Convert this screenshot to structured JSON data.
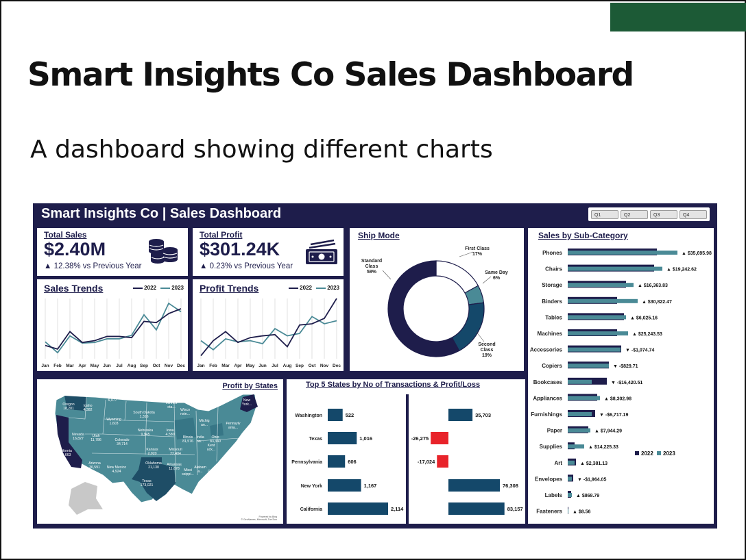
{
  "slide": {
    "title": "Smart Insights Co Sales Dashboard",
    "subtitle": "A dashboard showing different charts",
    "accent_color": "#1c5a36"
  },
  "dashboard": {
    "header": "Smart Insights Co | Sales Dashboard",
    "filters": [
      "Q1",
      "Q2",
      "Q3",
      "Q4"
    ],
    "background": "#1e1d4b",
    "colors": {
      "y2022": "#1e1d4b",
      "y2023": "#4a8a96",
      "bar": "#14486a",
      "loss": "#e8232a",
      "first_class": "#ffffff",
      "same_day": "#4a8a96",
      "second_class": "#14486a",
      "standard_class": "#1e1d4b"
    }
  },
  "kpis": {
    "sales": {
      "title": "Total Sales",
      "value": "$2.40M",
      "change": "▲ 12.38% vs Previous Year",
      "icon": "coins-icon"
    },
    "profit": {
      "title": "Total Profit",
      "value": "$301.24K",
      "change": "▲ 0.23% vs Previous Year",
      "icon": "cash-icon"
    }
  },
  "sales_trends": {
    "title": "Sales Trends"
  },
  "profit_trends": {
    "title": "Profit Trends"
  },
  "legend": {
    "y2022": "2022",
    "y2023": "2023"
  },
  "ship_mode": {
    "title": "Ship Mode"
  },
  "profit_by_states": {
    "title": "Profit by States",
    "attribution_1": "Powered by Bing",
    "attribution_2": "© GeoNames, Microsoft, TomTom",
    "labels": [
      {
        "name": "Washington",
        "value": "on..."
      },
      {
        "name": "Oregon",
        "value": "18,201"
      },
      {
        "name": "Idaho",
        "value": "4,382"
      },
      {
        "name": "Montana",
        "value": "6,077"
      },
      {
        "name": "North Dakota",
        "value": "920"
      },
      {
        "name": "Minnes",
        "value": "ota..."
      },
      {
        "name": "South Dakota",
        "value": "1,316"
      },
      {
        "name": "Wyoming",
        "value": "1,603"
      },
      {
        "name": "Wisco",
        "value": "nsin..."
      },
      {
        "name": "Nevada",
        "value": "16,827"
      },
      {
        "name": "Utah",
        "value": "11,786"
      },
      {
        "name": "Colorado",
        "value": "34,714"
      },
      {
        "name": "Nebraska",
        "value": "9,945"
      },
      {
        "name": "Iowa",
        "value": "4,580"
      },
      {
        "name": "Illinois",
        "value": "81,576"
      },
      {
        "name": "Michig",
        "value": "an..."
      },
      {
        "name": "New",
        "value": "York..."
      },
      {
        "name": "Pennsylv",
        "value": "ania..."
      },
      {
        "name": "California",
        "value": "494,663"
      },
      {
        "name": "Ohio",
        "value": "83,340"
      },
      {
        "name": "Kansas",
        "value": "2,920"
      },
      {
        "name": "Missouri",
        "value": "22,404"
      },
      {
        "name": "Kent",
        "value": "uck..."
      },
      {
        "name": "Arizona",
        "value": "36,591"
      },
      {
        "name": "New Mexico",
        "value": "4,924"
      },
      {
        "name": "Oklahoma",
        "value": "21,130"
      },
      {
        "name": "Arkansas",
        "value": "11,678"
      },
      {
        "name": "North",
        "value": "Car..."
      },
      {
        "name": "Alabam",
        "value": "a..."
      },
      {
        "name": "Missi",
        "value": "ssippi..."
      },
      {
        "name": "Georgia",
        "value": "50,478"
      },
      {
        "name": "Texas",
        "value": "173,021"
      },
      {
        "name": "India",
        "value": "na..."
      }
    ]
  },
  "top5": {
    "title": "Top 5 States by No of Transactions & Profit/Loss"
  },
  "subcategory": {
    "title": "Sales by Sub-Category"
  },
  "chart_data": [
    {
      "type": "line",
      "title": "Sales Trends",
      "x": [
        "Jan",
        "Feb",
        "Mar",
        "Apr",
        "May",
        "Jun",
        "Jul",
        "Aug",
        "Sep",
        "Oct",
        "Nov",
        "Dec"
      ],
      "ylim": [
        0,
        100
      ],
      "grid": true,
      "legend_position": "top-right",
      "series": [
        {
          "name": "2022",
          "values": [
            22,
            16,
            45,
            27,
            30,
            37,
            37,
            35,
            62,
            60,
            75,
            83
          ]
        },
        {
          "name": "2023",
          "values": [
            28,
            10,
            38,
            26,
            27,
            33,
            33,
            39,
            73,
            48,
            92,
            78
          ]
        }
      ]
    },
    {
      "type": "line",
      "title": "Profit Trends",
      "x": [
        "Jan",
        "Feb",
        "Mar",
        "Apr",
        "May",
        "Jun",
        "Jul",
        "Aug",
        "Sep",
        "Oct",
        "Nov",
        "Dec"
      ],
      "ylim": [
        0,
        100
      ],
      "grid": true,
      "legend_position": "top-right",
      "series": [
        {
          "name": "2022",
          "values": [
            5,
            30,
            45,
            27,
            35,
            38,
            40,
            20,
            56,
            58,
            67,
            100
          ]
        },
        {
          "name": "2023",
          "values": [
            30,
            15,
            33,
            28,
            30,
            25,
            50,
            38,
            42,
            70,
            58,
            63
          ]
        }
      ]
    },
    {
      "type": "pie",
      "title": "Ship Mode",
      "categories": [
        "First Class",
        "Same Day",
        "Second Class",
        "Standard Class"
      ],
      "values": [
        17,
        6,
        19,
        58
      ],
      "labels": [
        "First Class\n17%",
        "Same Day\n6%",
        "Second\nClass\n19%",
        "Standard\nClass\n58%"
      ],
      "style": "donut"
    },
    {
      "type": "bar",
      "title": "Top 5 States by No of Transactions",
      "categories": [
        "Washington",
        "Texas",
        "Pennsylvania",
        "New York",
        "California"
      ],
      "values": [
        522,
        1016,
        606,
        1167,
        2114
      ],
      "value_labels": [
        "522",
        "1,016",
        "606",
        "1,167",
        "2,114"
      ],
      "orientation": "horizontal"
    },
    {
      "type": "bar",
      "title": "Top 5 States Profit/Loss",
      "categories": [
        "Washington",
        "Texas",
        "Pennsylvania",
        "New York",
        "California"
      ],
      "values": [
        35703,
        -26275,
        -17024,
        76308,
        83157
      ],
      "value_labels": [
        "35,703",
        "-26,275",
        "-17,024",
        "76,308",
        "83,157"
      ],
      "orientation": "horizontal"
    },
    {
      "type": "bar",
      "title": "Sales by Sub-Category",
      "orientation": "horizontal",
      "legend_position": "bottom-right",
      "categories": [
        "Phones",
        "Chairs",
        "Storage",
        "Binders",
        "Tables",
        "Machines",
        "Accessories",
        "Copiers",
        "Bookcases",
        "Appliances",
        "Furnishings",
        "Paper",
        "Supplies",
        "Art",
        "Envelopes",
        "Labels",
        "Fasteners"
      ],
      "series": [
        {
          "name": "2022",
          "values": [
            130,
            126,
            85,
            72,
            82,
            72,
            78,
            60,
            57,
            43,
            40,
            30,
            10,
            12,
            8,
            5,
            1
          ]
        },
        {
          "name": "2023",
          "values": [
            160,
            138,
            96,
            102,
            85,
            88,
            77,
            60,
            35,
            47,
            35,
            33,
            24,
            10,
            6,
            6,
            1
          ]
        }
      ],
      "differences": [
        "▲ $35,695.98",
        "▲ $19,242.62",
        "▲ $16,363.83",
        "▲ $30,822.47",
        "▲ $6,025.16",
        "▲ $25,243.53",
        "▼ -$1,074.74",
        "▼ -$829.71",
        "▼ -$16,420.51",
        "▲ $8,302.98",
        "▼ -$6,717.19",
        "▲ $7,944.29",
        "▲ $14,225.33",
        "▲ $2,381.13",
        "▼ -$1,964.05",
        "▲ $868.79",
        "▲ $8.56"
      ]
    }
  ]
}
